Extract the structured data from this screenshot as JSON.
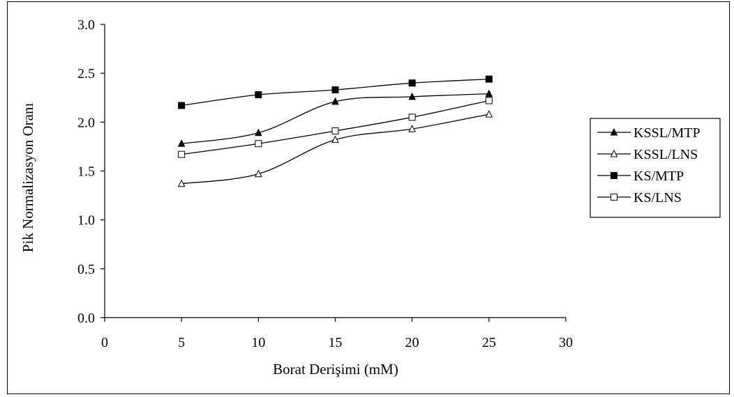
{
  "chart_data": {
    "type": "line",
    "title": "",
    "xlabel": "Borat Derişimi (mM)",
    "ylabel": "Pik Normalizasyon Oranı",
    "xlim": [
      0,
      30
    ],
    "ylim": [
      0,
      3.0
    ],
    "x_ticks": [
      "0",
      "5",
      "10",
      "15",
      "20",
      "25",
      "30"
    ],
    "y_ticks": [
      "0.0",
      "0.5",
      "1.0",
      "1.5",
      "2.0",
      "2.5",
      "3.0"
    ],
    "grid": false,
    "legend_position": "right",
    "series": [
      {
        "name": "KSSL/MTP",
        "marker": "filled-triangle",
        "x": [
          5,
          10,
          15,
          20,
          25
        ],
        "y": [
          1.78,
          1.89,
          2.21,
          2.26,
          2.29
        ]
      },
      {
        "name": "KSSL/LNS",
        "marker": "open-triangle",
        "x": [
          5,
          10,
          15,
          20,
          25
        ],
        "y": [
          1.37,
          1.47,
          1.82,
          1.93,
          2.08
        ]
      },
      {
        "name": "KS/MTP",
        "marker": "filled-square",
        "x": [
          5,
          10,
          15,
          20,
          25
        ],
        "y": [
          2.17,
          2.28,
          2.33,
          2.4,
          2.44
        ]
      },
      {
        "name": "KS/LNS",
        "marker": "open-square",
        "x": [
          5,
          10,
          15,
          20,
          25
        ],
        "y": [
          1.67,
          1.78,
          1.91,
          2.05,
          2.22
        ]
      }
    ]
  }
}
